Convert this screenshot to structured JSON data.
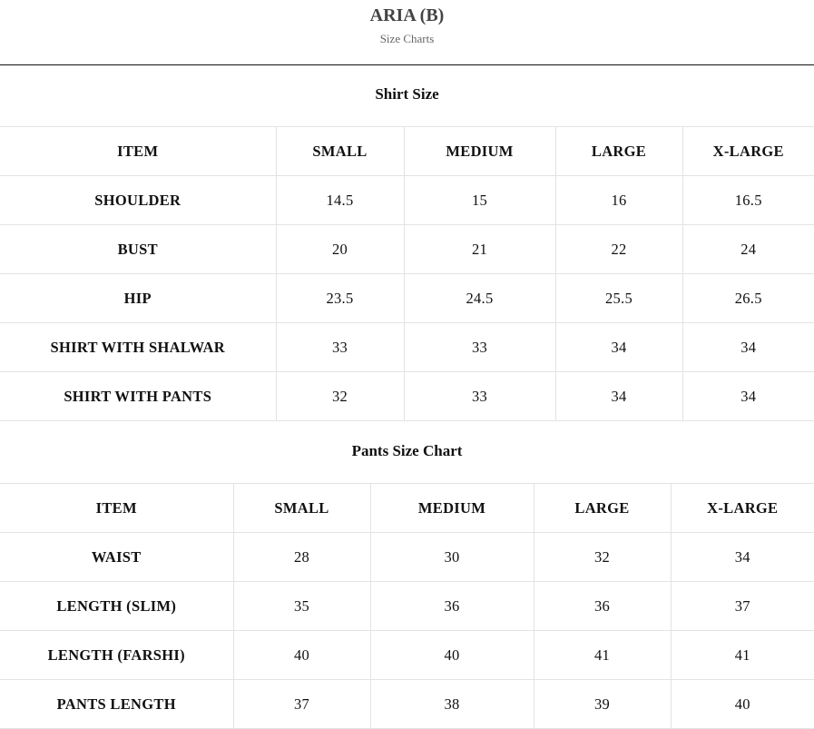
{
  "header": {
    "title": "ARIA (B)",
    "subtitle": "Size Charts"
  },
  "shirt": {
    "title": "Shirt Size",
    "columns": [
      "ITEM",
      "SMALL",
      "MEDIUM",
      "LARGE",
      "X-LARGE"
    ],
    "rows": [
      [
        "SHOULDER",
        "14.5",
        "15",
        "16",
        "16.5"
      ],
      [
        "BUST",
        "20",
        "21",
        "22",
        "24"
      ],
      [
        "HIP",
        "23.5",
        "24.5",
        "25.5",
        "26.5"
      ],
      [
        "SHIRT WITH SHALWAR",
        "33",
        "33",
        "34",
        "34"
      ],
      [
        "SHIRT WITH PANTS",
        "32",
        "33",
        "34",
        "34"
      ]
    ]
  },
  "pants": {
    "title": "Pants Size Chart",
    "columns": [
      "ITEM",
      "SMALL",
      "MEDIUM",
      "LARGE",
      "X-LARGE"
    ],
    "rows": [
      [
        "WAIST",
        "28",
        "30",
        "32",
        "34"
      ],
      [
        "LENGTH (SLIM)",
        "35",
        "36",
        "36",
        "37"
      ],
      [
        "LENGTH (FARSHI)",
        "40",
        "40",
        "41",
        "41"
      ],
      [
        "PANTS LENGTH",
        "37",
        "38",
        "39",
        "40"
      ]
    ]
  }
}
